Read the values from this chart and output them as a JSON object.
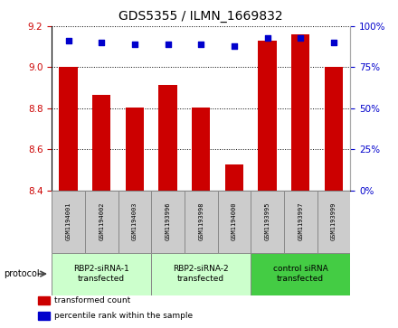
{
  "title": "GDS5355 / ILMN_1669832",
  "samples": [
    "GSM1194001",
    "GSM1194002",
    "GSM1194003",
    "GSM1193996",
    "GSM1193998",
    "GSM1194000",
    "GSM1193995",
    "GSM1193997",
    "GSM1193999"
  ],
  "bar_values": [
    9.0,
    8.865,
    8.805,
    8.915,
    8.805,
    8.525,
    9.13,
    9.16,
    9.0
  ],
  "percentile_values": [
    91,
    90,
    89,
    89,
    89,
    88,
    93,
    93,
    90
  ],
  "ylim_left": [
    8.4,
    9.2
  ],
  "ylim_right": [
    0,
    100
  ],
  "yticks_left": [
    8.4,
    8.6,
    8.8,
    9.0,
    9.2
  ],
  "yticks_right": [
    0,
    25,
    50,
    75,
    100
  ],
  "bar_color": "#cc0000",
  "dot_color": "#0000cc",
  "bar_bottom": 8.4,
  "groups": [
    {
      "label": "RBP2-siRNA-1\ntransfected",
      "start": 0,
      "end": 3,
      "color": "#ccffcc"
    },
    {
      "label": "RBP2-siRNA-2\ntransfected",
      "start": 3,
      "end": 6,
      "color": "#ccffcc"
    },
    {
      "label": "control siRNA\ntransfected",
      "start": 6,
      "end": 9,
      "color": "#44cc44"
    }
  ],
  "protocol_label": "protocol",
  "legend_items": [
    {
      "color": "#cc0000",
      "label": "transformed count"
    },
    {
      "color": "#0000cc",
      "label": "percentile rank within the sample"
    }
  ],
  "tick_label_color_left": "#cc0000",
  "tick_label_color_right": "#0000cc",
  "sample_box_color": "#cccccc",
  "figsize": [
    4.4,
    3.63
  ],
  "dpi": 100
}
